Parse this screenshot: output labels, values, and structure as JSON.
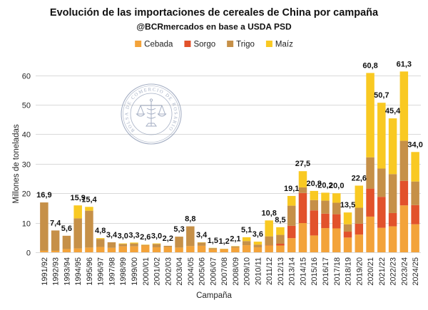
{
  "chart_data": {
    "type": "bar",
    "stacked": true,
    "title": "Evolución de las importaciones de cereales de China por campaña",
    "subtitle": "@BCRmercados en base a USDA PSD",
    "xlabel": "Campaña",
    "ylabel": "Millones de toneladas",
    "ylim": [
      0,
      65
    ],
    "yticks": [
      0,
      10,
      20,
      30,
      40,
      50,
      60
    ],
    "grid": true,
    "legend": "top",
    "categories": [
      "1991/92",
      "1992/93",
      "1993/94",
      "1994/95",
      "1995/96",
      "1996/97",
      "1997/98",
      "1998/99",
      "1999/00",
      "2000/01",
      "2001/02",
      "2002/03",
      "2003/04",
      "2004/05",
      "2005/06",
      "2006/07",
      "2007/08",
      "2008/09",
      "2009/10",
      "2010/11",
      "2011/12",
      "2012/13",
      "2013/14",
      "2014/15",
      "2015/16",
      "2016/17",
      "2017/18",
      "2018/19",
      "2019/20",
      "2020/21",
      "2021/22",
      "2022/23",
      "2023/24",
      "2024/25"
    ],
    "series": [
      {
        "name": "Cebada",
        "color": "#F3A33A",
        "values": [
          0.5,
          0.5,
          1.1,
          1.3,
          1.6,
          1.8,
          1.5,
          2.0,
          2.0,
          2.3,
          1.7,
          1.8,
          1.6,
          2.1,
          2.2,
          1.0,
          1.0,
          1.6,
          2.4,
          1.7,
          2.3,
          2.3,
          4.8,
          9.9,
          5.7,
          8.2,
          8.1,
          5.0,
          6.0,
          12.1,
          8.3,
          8.8,
          15.9,
          9.5
        ]
      },
      {
        "name": "Sorgo",
        "color": "#E2522B",
        "values": [
          0,
          0,
          0,
          0,
          0,
          0,
          0,
          0,
          0,
          0,
          0,
          0,
          0,
          0,
          0,
          0,
          0,
          0,
          0,
          0,
          0.1,
          0.6,
          4.2,
          10.2,
          8.5,
          4.9,
          4.8,
          2.0,
          3.7,
          9.5,
          10.5,
          4.5,
          8.3,
          6.5
        ]
      },
      {
        "name": "Trigo",
        "color": "#C69048",
        "values": [
          16.4,
          6.9,
          4.5,
          10.2,
          12.5,
          2.7,
          1.9,
          0.8,
          1.0,
          0.2,
          1.1,
          0.4,
          3.7,
          6.7,
          1.1,
          0.4,
          0.1,
          0.4,
          1.4,
          0.9,
          3.0,
          3.0,
          6.8,
          1.9,
          3.5,
          4.4,
          3.9,
          2.5,
          5.4,
          10.6,
          9.6,
          13.2,
          13.6,
          8.0
        ]
      },
      {
        "name": "Maíz",
        "color": "#F9C922",
        "values": [
          0,
          0,
          0,
          4.4,
          1.3,
          0.3,
          0,
          0.2,
          0.3,
          0.1,
          0.2,
          0,
          0,
          0,
          0.1,
          0.1,
          0.1,
          0.1,
          1.3,
          1.0,
          5.4,
          2.6,
          3.3,
          5.5,
          3.1,
          2.7,
          3.2,
          4.0,
          7.5,
          28.6,
          22.3,
          18.9,
          23.5,
          10.0
        ]
      }
    ],
    "data_labels": [
      "16,9",
      "7,4",
      "5,6",
      "15,9",
      "15,4",
      "4,8",
      "3,4",
      "3,0",
      "3,3",
      "2,6",
      "3,0",
      "2,2",
      "5,3",
      "8,8",
      "3,4",
      "1,5",
      "1,2",
      "2,1",
      "5,1",
      "3,6",
      "10,8",
      "8,5",
      "19,1",
      "27,5",
      "20,8",
      "20,2",
      "20,0",
      "13,5",
      "22,6",
      "60,8",
      "50,7",
      "45,4",
      "61,3",
      "34,0"
    ]
  },
  "watermark": {
    "text": "BOLSA DE COMERCIO DE ROSARIO"
  }
}
